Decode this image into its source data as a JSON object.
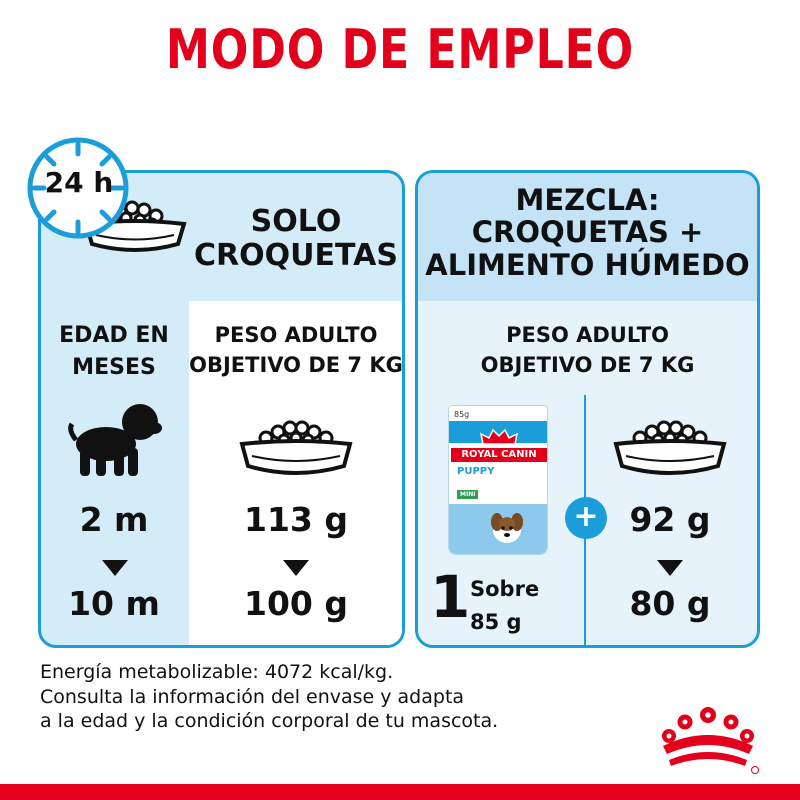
{
  "title": "MODO DE EMPLEO",
  "clock": {
    "label": "24 h",
    "icon": "clock-icon"
  },
  "left_panel": {
    "heading_line1": "SOLO",
    "heading_line2": "CROQUETAS",
    "age_header_line1": "EDAD EN",
    "age_header_line2": "MESES",
    "weight_header_line1": "PESO ADULTO",
    "weight_header_line2": "OBJETIVO DE 7 KG",
    "age_start": "2 m",
    "age_end": "10 m",
    "dose_start": "113 g",
    "dose_end": "100 g"
  },
  "right_panel": {
    "heading_line1": "MEZCLA:",
    "heading_line2": "CROQUETAS +",
    "heading_line3": "ALIMENTO HÚMEDO",
    "weight_header_line1": "PESO ADULTO",
    "weight_header_line2": "OBJETIVO DE 7 KG",
    "pouch": {
      "weight_label": "85g",
      "brand": "ROYAL CANIN",
      "product": "PUPPY",
      "variant": "MINI"
    },
    "sachet_count": "1",
    "sachet_word": "Sobre",
    "sachet_weight": "85 g",
    "plus_symbol": "+",
    "dose_start": "92 g",
    "dose_end": "80 g"
  },
  "footnote": {
    "line1": "Energía metabolizable: 4072 kcal/kg.",
    "line2": "Consulta la información del envase y adapta",
    "line3": "a la edad y la condición corporal de tu mascota."
  },
  "colors": {
    "brand_red": "#e2001a",
    "accent_blue": "#1a9dd9",
    "light_blue": "#d4ebf8"
  }
}
